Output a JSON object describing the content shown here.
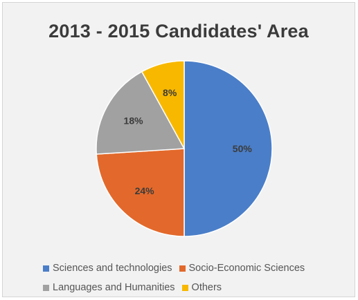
{
  "chart_data": {
    "type": "pie",
    "title": "2013 - 2015 Candidates' Area",
    "slices": [
      {
        "name": "Sciences and technologies",
        "value": 50,
        "label": "50%",
        "color": "#4a7ec8"
      },
      {
        "name": "Socio-Economic Sciences",
        "value": 24,
        "label": "24%",
        "color": "#e2692b"
      },
      {
        "name": "Languages and Humanities",
        "value": 18,
        "label": "18%",
        "color": "#a1a1a1"
      },
      {
        "name": "Others",
        "value": 8,
        "label": "8%",
        "color": "#f8b800"
      }
    ],
    "legend_position": "bottom"
  }
}
